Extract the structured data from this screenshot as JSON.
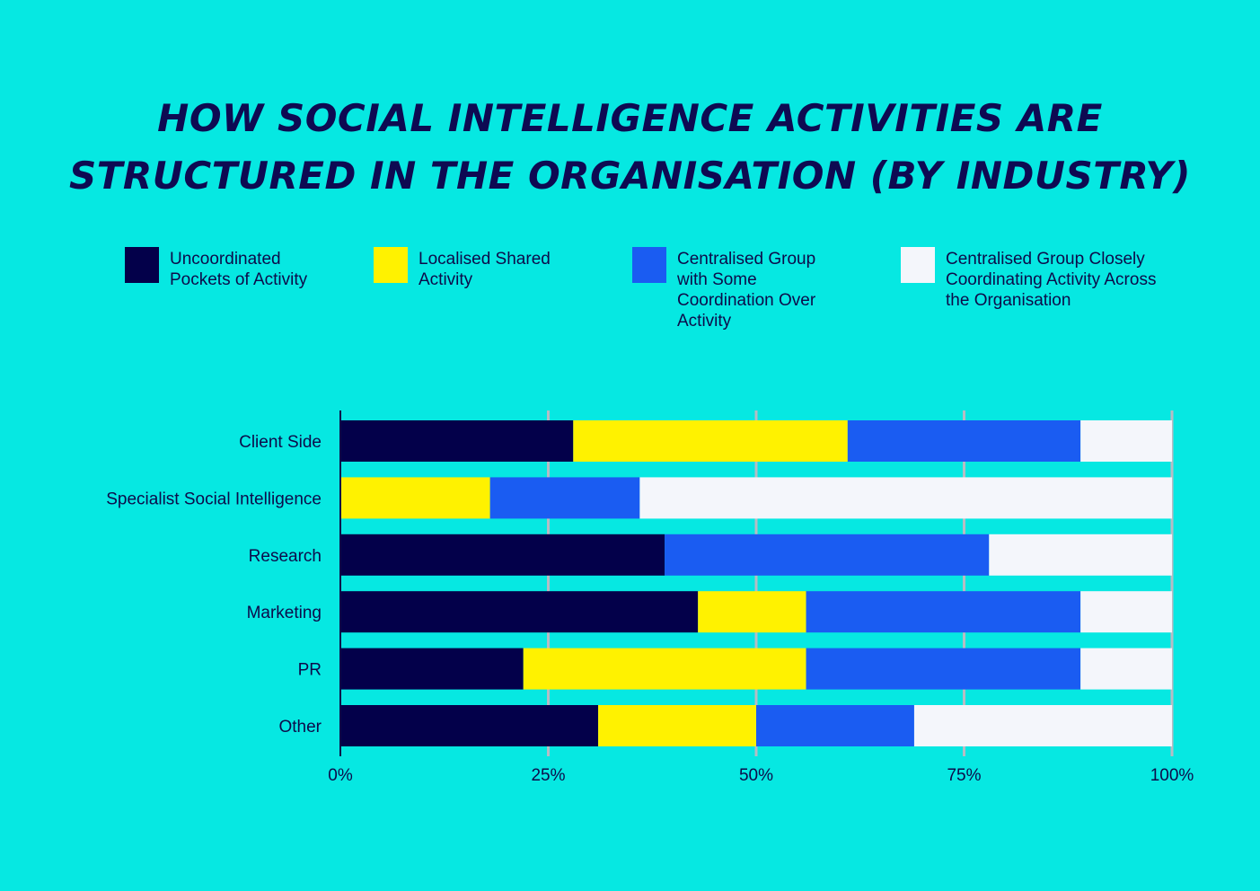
{
  "title": {
    "line1": "How Social Intelligence Activities Are",
    "line2": "Structured in the Organisation (By Industry)"
  },
  "legend": [
    {
      "label": "Uncoordinated Pockets of Activity",
      "color": "#03004a"
    },
    {
      "label": "Localised Shared Activity",
      "color": "#fff200"
    },
    {
      "label": "Centralised Group with Some Coordination Over Activity",
      "color": "#1a5cf2"
    },
    {
      "label": "Centralised Group Closely Coordinating Activity Across the Organisation",
      "color": "#f4f6fb"
    }
  ],
  "chart_data": {
    "type": "bar",
    "orientation": "horizontal",
    "stacked": true,
    "categories": [
      "Client Side",
      "Specialist Social Intelligence",
      "Research",
      "Marketing",
      "PR",
      "Other"
    ],
    "series": [
      {
        "name": "Uncoordinated Pockets of Activity",
        "color": "#03004a",
        "values": [
          28,
          0,
          39,
          43,
          22,
          31
        ]
      },
      {
        "name": "Localised Shared Activity",
        "color": "#fff200",
        "values": [
          33,
          18,
          0,
          13,
          34,
          19
        ]
      },
      {
        "name": "Centralised Group with Some Coordination Over Activity",
        "color": "#1a5cf2",
        "values": [
          28,
          18,
          39,
          33,
          33,
          19
        ]
      },
      {
        "name": "Centralised Group Closely Coordinating Activity Across the Organisation",
        "color": "#f4f6fb",
        "values": [
          11,
          64,
          22,
          11,
          11,
          31
        ]
      }
    ],
    "xticks": [
      "0%",
      "25%",
      "50%",
      "75%",
      "100%"
    ],
    "xlim": [
      0,
      100
    ],
    "grid": true,
    "legend_position": "top"
  }
}
